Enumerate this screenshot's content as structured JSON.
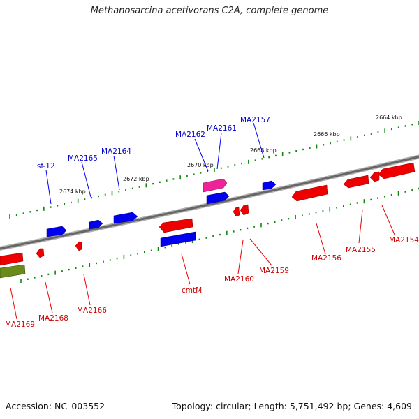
{
  "title": "Methanosarcina acetivorans C2A, complete genome",
  "footer": {
    "accession": "Accession: NC_003552",
    "summary": "Topology: circular; Length: 5,751,492 bp; Genes: 4,609"
  },
  "colors": {
    "forward": "#0000ee",
    "reverse": "#ee0000",
    "highlight": "#ee2299",
    "green": "#6a8a1a",
    "backbone": "#777777",
    "ticks": "#118811"
  },
  "kbp_labels": [
    "2664 kbp",
    "2666 kbp",
    "2668 kbp",
    "2670 kbp",
    "2672 kbp",
    "2674 kbp"
  ],
  "forward_labels": [
    "MA2157",
    "MA2161",
    "MA2162",
    "MA2164",
    "MA2165",
    "isf-12"
  ],
  "reverse_labels": [
    "MA2154",
    "MA2155",
    "MA2156",
    "MA2159",
    "MA2160",
    "cmtM",
    "MA2166",
    "MA2168",
    "MA2169"
  ]
}
